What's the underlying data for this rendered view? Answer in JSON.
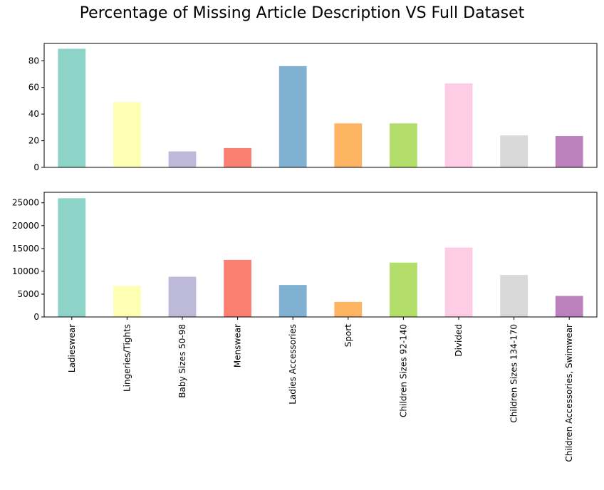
{
  "title": "Percentage of Missing Article Description VS Full Dataset",
  "chart_data": [
    {
      "type": "bar",
      "title": "",
      "xlabel": "",
      "ylabel": "",
      "ylim": [
        0,
        93
      ],
      "yticks": [
        0,
        20,
        40,
        60,
        80
      ],
      "show_xticklabels": false,
      "grid": false,
      "categories": [
        "Ladieswear",
        "Lingeries/Tights",
        "Baby Sizes 50-98",
        "Menswear",
        "Ladies Accessories",
        "Sport",
        "Children Sizes 92-140",
        "Divided",
        "Children Sizes 134-170",
        "Children Accessories, Swimwear"
      ],
      "values": [
        89,
        49,
        12,
        14.5,
        76,
        33,
        33,
        63,
        24,
        23.5
      ],
      "colors": [
        "#8dd3c7",
        "#ffffb3",
        "#bebada",
        "#fb8072",
        "#80b1d3",
        "#fdb462",
        "#b3de69",
        "#fccde5",
        "#d9d9d9",
        "#bc80bd"
      ]
    },
    {
      "type": "bar",
      "title": "",
      "xlabel": "",
      "ylabel": "",
      "ylim": [
        0,
        27300
      ],
      "yticks": [
        0,
        5000,
        10000,
        15000,
        20000,
        25000
      ],
      "show_xticklabels": true,
      "grid": false,
      "categories": [
        "Ladieswear",
        "Lingeries/Tights",
        "Baby Sizes 50-98",
        "Menswear",
        "Ladies Accessories",
        "Sport",
        "Children Sizes 92-140",
        "Divided",
        "Children Sizes 134-170",
        "Children Accessories, Swimwear"
      ],
      "values": [
        26000,
        6800,
        8800,
        12500,
        7000,
        3300,
        11900,
        15200,
        9200,
        4600
      ],
      "colors": [
        "#8dd3c7",
        "#ffffb3",
        "#bebada",
        "#fb8072",
        "#80b1d3",
        "#fdb462",
        "#b3de69",
        "#fccde5",
        "#d9d9d9",
        "#bc80bd"
      ]
    }
  ]
}
